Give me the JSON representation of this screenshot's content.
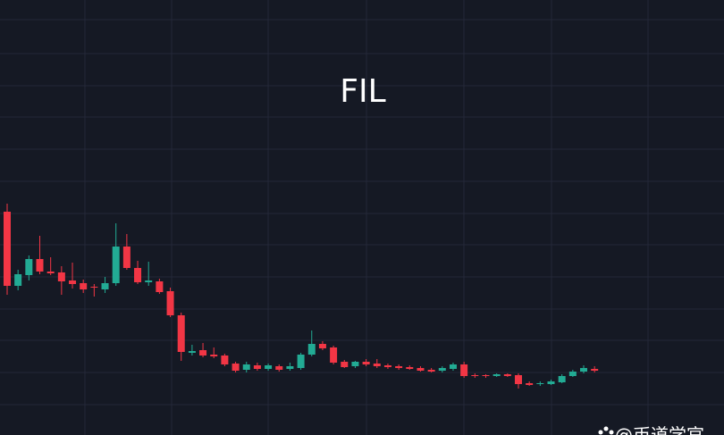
{
  "chart_data": {
    "type": "candlestick",
    "title": "FIL",
    "open": [
      250,
      167,
      179,
      197,
      183,
      182,
      173,
      170,
      166,
      163,
      170,
      211,
      187,
      171,
      172,
      161,
      134,
      92,
      95,
      90,
      89,
      80,
      73,
      78,
      74,
      77,
      74,
      75,
      90,
      102,
      98,
      82,
      77,
      82,
      80,
      78,
      77,
      76,
      75,
      73,
      72,
      74,
      79,
      67,
      67,
      66,
      68,
      67,
      58,
      57,
      57,
      59,
      66,
      71,
      74
    ],
    "high": [
      259,
      185,
      201,
      223,
      199,
      189,
      193,
      174,
      169,
      177,
      237,
      225,
      195,
      194,
      175,
      165,
      137,
      101,
      103,
      98,
      91,
      82,
      82,
      81,
      80,
      79,
      81,
      92,
      117,
      105,
      100,
      84,
      83,
      85,
      85,
      80,
      79,
      78,
      77,
      75,
      77,
      81,
      82,
      69,
      68,
      69,
      69,
      69,
      60,
      60,
      62,
      68,
      73,
      78,
      77
    ],
    "low": [
      157,
      162,
      173,
      180,
      179,
      157,
      164,
      159,
      155,
      159,
      167,
      185,
      169,
      167,
      158,
      132,
      83,
      89,
      87,
      86,
      77,
      70,
      70,
      72,
      72,
      71,
      72,
      73,
      88,
      95,
      79,
      75,
      75,
      77,
      75,
      74,
      73,
      73,
      71,
      70,
      70,
      72,
      64,
      64,
      64,
      65,
      65,
      52,
      55,
      55,
      56,
      58,
      65,
      69,
      70
    ],
    "close": [
      167,
      180,
      197,
      183,
      181,
      172,
      169,
      163,
      165,
      170,
      211,
      187,
      171,
      173,
      160,
      134,
      93,
      94,
      89,
      88,
      79,
      72,
      79,
      74,
      78,
      73,
      77,
      90,
      102,
      97,
      81,
      76,
      82,
      79,
      77,
      76,
      75,
      74,
      72,
      71,
      75,
      79,
      66,
      66,
      66,
      68,
      66,
      57,
      56,
      58,
      60,
      66,
      71,
      75,
      72
    ],
    "up_color": "#22ab94",
    "down_color": "#f23645",
    "ylim": [
      0,
      487
    ],
    "grid": true
  },
  "watermark": "@币道学官"
}
